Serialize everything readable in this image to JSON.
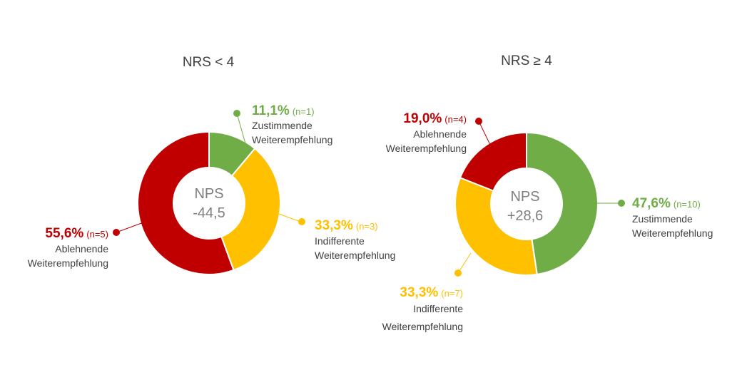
{
  "chart_data": [
    {
      "type": "donut",
      "title": "NRS < 4",
      "center_label": "NPS",
      "center_value": "-44,5",
      "slices": [
        {
          "key": "zustimmend",
          "percent": 11.1,
          "percent_label": "11,1%",
          "n_label": "(n=1)",
          "label_lines": [
            "Zustimmende",
            "Weiterempfehlung"
          ],
          "color": "#70AD47"
        },
        {
          "key": "indifferent",
          "percent": 33.3,
          "percent_label": "33,3%",
          "n_label": "(n=3)",
          "label_lines": [
            "Indifferente",
            "Weiterempfehlung"
          ],
          "color": "#FFC000"
        },
        {
          "key": "ablehnend",
          "percent": 55.6,
          "percent_label": "55,6%",
          "n_label": "(n=5)",
          "label_lines": [
            "Ablehnende",
            "Weiterempfehlung"
          ],
          "color": "#C00000"
        }
      ]
    },
    {
      "type": "donut",
      "title": "NRS ≥ 4",
      "center_label": "NPS",
      "center_value": "+28,6",
      "slices": [
        {
          "key": "zustimmend",
          "percent": 47.6,
          "percent_label": "47,6%",
          "n_label": "(n=10)",
          "label_lines": [
            "Zustimmende",
            "Weiterempfehlung"
          ],
          "color": "#70AD47"
        },
        {
          "key": "indifferent",
          "percent": 33.3,
          "percent_label": "33,3%",
          "n_label": "(n=7)",
          "label_lines": [
            "Indifferente",
            "Weiterempfehlung"
          ],
          "color": "#FFC000"
        },
        {
          "key": "ablehnend",
          "percent": 19.0,
          "percent_label": "19,0%",
          "n_label": "(n=4)",
          "label_lines": [
            "Ablehnende",
            "Weiterempfehlung"
          ],
          "color": "#C00000"
        }
      ]
    }
  ]
}
